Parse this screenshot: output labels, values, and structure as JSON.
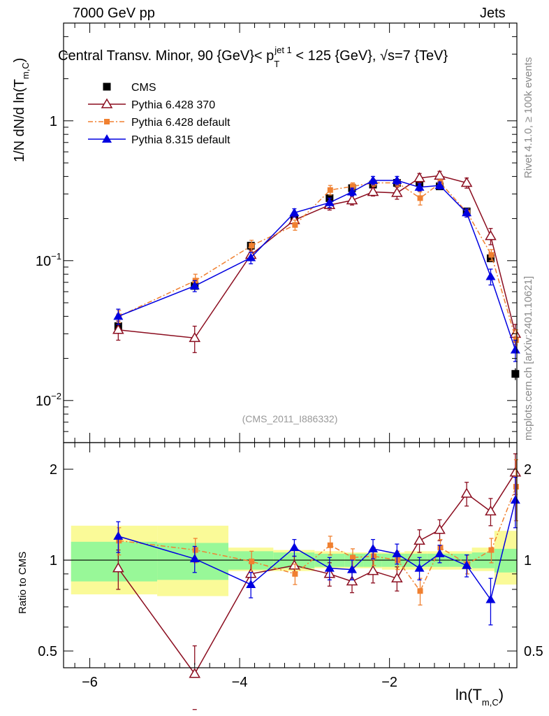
{
  "header": {
    "left": "7000 GeV pp",
    "right": "Jets"
  },
  "side_text": {
    "rivet": "Rivet 4.1.0, ≥ 100k events",
    "mcplots": "mcplots.cern.ch [arXiv:2401.10621]"
  },
  "colors": {
    "cms": "#000000",
    "p6_370": "#8b0d1f",
    "p6_default": "#f08030",
    "p8_default": "#0000e0",
    "band_inner": "#98f898",
    "band_outer": "#fafa98"
  },
  "chart_data": {
    "type": "line",
    "title_parts": {
      "pre": "Central Transv. Minor, 90 {GeV}< p",
      "sup": "jet 1",
      "sub": "T",
      "post": " < 125 {GeV}, √s=7 {TeV}"
    },
    "watermark": "(CMS_2011_I886332)",
    "ylabel_main": "1/N    dN/d ln(T",
    "ylabel_main_sub": "m,C",
    "ylabel_ratio": "Ratio to CMS",
    "xlabel": "ln(T",
    "xlabel_sub": "m,C",
    "xlim": [
      -6.35,
      -0.3
    ],
    "ylim_main": [
      0.005,
      5.0
    ],
    "ylim_ratio": [
      0.44,
      2.45
    ],
    "xticks": [
      -6,
      -4,
      -2
    ],
    "xtick_labels": [
      "−6",
      "−4",
      "−2"
    ],
    "yticks_main": [
      {
        "base": "1",
        "exp": ""
      },
      {
        "base": "10",
        "exp": "−1"
      },
      {
        "base": "10",
        "exp": "−2"
      }
    ],
    "yticks_ratio_labels": [
      "2",
      "1",
      "0.5"
    ],
    "yticks_ratio": [
      2,
      1,
      0.5
    ],
    "bins": [
      {
        "lo": -6.25,
        "hi": -5.1
      },
      {
        "lo": -5.1,
        "hi": -4.15
      },
      {
        "lo": -4.15,
        "hi": -3.55
      },
      {
        "lo": -3.55,
        "hi": -3.0
      },
      {
        "lo": -3.0,
        "hi": -2.6
      },
      {
        "lo": -2.6,
        "hi": -2.35
      },
      {
        "lo": -2.35,
        "hi": -2.1
      },
      {
        "lo": -2.1,
        "hi": -1.8
      },
      {
        "lo": -1.8,
        "hi": -1.5
      },
      {
        "lo": -1.5,
        "hi": -1.2
      },
      {
        "lo": -1.2,
        "hi": -0.9
      },
      {
        "lo": -0.9,
        "hi": -0.6
      },
      {
        "lo": -0.6,
        "hi": -0.3
      }
    ],
    "x": [
      -5.62,
      -4.6,
      -3.85,
      -3.27,
      -2.8,
      -2.5,
      -2.22,
      -1.9,
      -1.6,
      -1.33,
      -0.97,
      -0.65,
      -0.32
    ],
    "band_inner_half": [
      0.15,
      0.14,
      0.07,
      0.06,
      0.05,
      0.05,
      0.05,
      0.05,
      0.05,
      0.05,
      0.05,
      0.06,
      0.09
    ],
    "band_outer": [
      [
        0.77,
        1.3
      ],
      [
        0.76,
        1.3
      ],
      [
        0.92,
        1.1
      ],
      [
        0.92,
        1.08
      ],
      [
        0.94,
        1.07
      ],
      [
        0.94,
        1.06
      ],
      [
        0.94,
        1.06
      ],
      [
        0.93,
        1.06
      ],
      [
        0.93,
        1.07
      ],
      [
        0.93,
        1.07
      ],
      [
        0.93,
        1.07
      ],
      [
        0.92,
        1.1
      ],
      [
        0.83,
        1.25
      ]
    ],
    "series": [
      {
        "name": "CMS",
        "key": "cms",
        "marker": "square",
        "connected": false,
        "values": [
          0.034,
          0.066,
          0.128,
          0.2,
          0.28,
          0.33,
          0.35,
          0.36,
          0.36,
          0.34,
          0.225,
          0.104,
          0.0155
        ],
        "errors": [
          0.003,
          0.005,
          0.006,
          0.008,
          0.01,
          0.01,
          0.01,
          0.01,
          0.01,
          0.01,
          0.008,
          0.006,
          0.0015
        ],
        "ratio": [
          1,
          1,
          1,
          1,
          1,
          1,
          1,
          1,
          1,
          1,
          1,
          1,
          1
        ]
      },
      {
        "name": "Pythia 6.428 370",
        "key": "p6_370",
        "marker": "open-triangle",
        "connected": true,
        "values": [
          0.032,
          0.028,
          0.11,
          0.195,
          0.25,
          0.27,
          0.31,
          0.305,
          0.39,
          0.405,
          0.36,
          0.15,
          0.03
        ],
        "errors": [
          0.005,
          0.006,
          0.009,
          0.012,
          0.02,
          0.02,
          0.02,
          0.03,
          0.03,
          0.03,
          0.03,
          0.02,
          0.005
        ],
        "ratio": [
          0.94,
          0.42,
          0.9,
          0.96,
          0.9,
          0.85,
          0.92,
          0.87,
          1.16,
          1.26,
          1.66,
          1.45,
          1.95
        ],
        "ratio_err": [
          0.14,
          0.1,
          0.08,
          0.07,
          0.08,
          0.07,
          0.08,
          0.08,
          0.1,
          0.1,
          0.15,
          0.15,
          0.3
        ]
      },
      {
        "name": "Pythia 6.428 default",
        "key": "p6_default",
        "marker": "filled-square-small",
        "connected": true,
        "values": [
          0.04,
          0.072,
          0.128,
          0.18,
          0.32,
          0.34,
          0.36,
          0.36,
          0.28,
          0.36,
          0.22,
          0.11,
          0.027
        ],
        "errors": [
          0.004,
          0.008,
          0.012,
          0.015,
          0.025,
          0.02,
          0.02,
          0.02,
          0.03,
          0.02,
          0.015,
          0.01,
          0.005
        ],
        "ratio": [
          1.16,
          1.08,
          0.99,
          0.9,
          1.12,
          1.02,
          1.03,
          1.0,
          0.79,
          1.1,
          0.97,
          1.08,
          1.75
        ],
        "ratio_err": [
          0.12,
          0.1,
          0.08,
          0.07,
          0.08,
          0.07,
          0.07,
          0.07,
          0.08,
          0.07,
          0.07,
          0.1,
          0.4
        ]
      },
      {
        "name": "Pythia 8.315 default",
        "key": "p8_default",
        "marker": "filled-triangle",
        "connected": true,
        "values": [
          0.04,
          0.066,
          0.105,
          0.22,
          0.26,
          0.31,
          0.375,
          0.375,
          0.335,
          0.345,
          0.22,
          0.077,
          0.023
        ],
        "errors": [
          0.005,
          0.006,
          0.01,
          0.015,
          0.02,
          0.02,
          0.025,
          0.025,
          0.02,
          0.02,
          0.015,
          0.01,
          0.004
        ],
        "ratio": [
          1.2,
          1.01,
          0.83,
          1.1,
          0.94,
          0.93,
          1.09,
          1.05,
          0.94,
          1.05,
          0.96,
          0.74,
          1.58
        ],
        "ratio_err": [
          0.14,
          0.1,
          0.08,
          0.07,
          0.08,
          0.07,
          0.08,
          0.08,
          0.08,
          0.07,
          0.08,
          0.13,
          0.3
        ]
      }
    ]
  }
}
